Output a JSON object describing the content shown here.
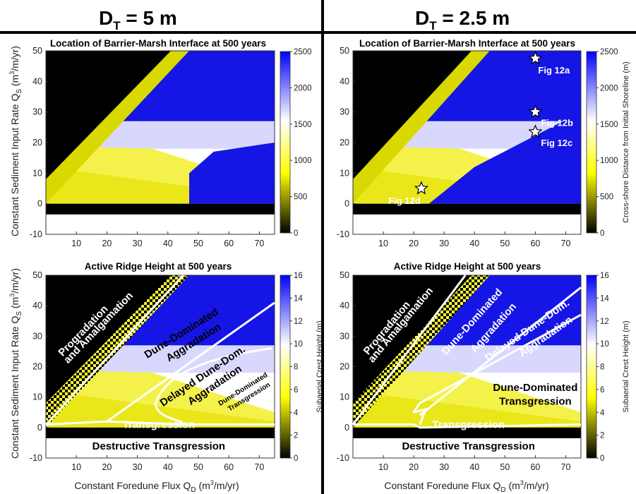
{
  "column_titles": [
    {
      "main": "D",
      "sub": "T",
      "rest": " = 5 m"
    },
    {
      "main": "D",
      "sub": "T",
      "rest": " = 2.5 m"
    }
  ],
  "chart_data": [
    {
      "type": "heatmap",
      "title": "Location of Barrier-Marsh Interface at 500 years",
      "column": "D_T = 5 m",
      "xlabel": "",
      "ylabel": "Constant Sediment Input Rate Q_S (m^3/m/yr)",
      "xlim": [
        0,
        75
      ],
      "ylim": [
        -10,
        50
      ],
      "xticks": [
        10,
        20,
        30,
        40,
        50,
        60,
        70
      ],
      "yticks": [
        -10,
        0,
        10,
        20,
        30,
        40,
        50
      ],
      "colorbar": {
        "label": "",
        "range": [
          0,
          2500
        ],
        "ticks": [
          0,
          500,
          1000,
          1500,
          2000,
          2500
        ],
        "colors": [
          "#000000",
          "#ffff00",
          "#ffffff",
          "#0000ff"
        ]
      },
      "annotations": []
    },
    {
      "type": "heatmap",
      "title": "Location of Barrier-Marsh Interface at 500 years",
      "column": "D_T = 2.5 m",
      "xlabel": "",
      "ylabel": "",
      "xlim": [
        0,
        75
      ],
      "ylim": [
        -10,
        50
      ],
      "xticks": [
        10,
        20,
        30,
        40,
        50,
        60,
        70
      ],
      "yticks": [
        -10,
        0,
        10,
        20,
        30,
        40,
        50
      ],
      "colorbar": {
        "label": "Cross-shore Distance from Initial Shoreline (m)",
        "range": [
          0,
          2500
        ],
        "ticks": [
          0,
          500,
          1000,
          1500,
          2000,
          2500
        ],
        "colors": [
          "#000000",
          "#ffff00",
          "#ffffff",
          "#0000ff"
        ]
      },
      "annotations": [
        {
          "label": "Fig 12a",
          "x": 60,
          "y": 47.5
        },
        {
          "label": "Fig 12b",
          "x": 60,
          "y": 30
        },
        {
          "label": "Fig 12c",
          "x": 60,
          "y": 23.5
        },
        {
          "label": "Fig 12d",
          "x": 22.5,
          "y": 5
        }
      ]
    },
    {
      "type": "heatmap",
      "title": "Active Ridge Height at 500 years",
      "column": "D_T = 5 m",
      "xlabel": "Constant Foredune Flux Q_D (m^3/m/yr)",
      "ylabel": "Constant Sediment Input Rate Q_S (m^3/m/yr)",
      "xlim": [
        0,
        75
      ],
      "ylim": [
        -10,
        50
      ],
      "xticks": [
        10,
        20,
        30,
        40,
        50,
        60,
        70
      ],
      "yticks": [
        -10,
        0,
        10,
        20,
        30,
        40,
        50
      ],
      "colorbar": {
        "label": "Subaerial Crest Height (m)",
        "range": [
          0,
          16
        ],
        "ticks": [
          0,
          2,
          4,
          6,
          8,
          10,
          12,
          14,
          16
        ],
        "colors": [
          "#000000",
          "#ffff00",
          "#ffffff",
          "#0000ff"
        ]
      },
      "regions": [
        "Progradation and Amalgamation",
        "Dune-Dominated Aggradation",
        "Delayed Dune-Dom. Aggradation",
        "Dune-Dominated Transgression",
        "Transgression",
        "Destructive Transgression"
      ]
    },
    {
      "type": "heatmap",
      "title": "Active Ridge Height at 500 years",
      "column": "D_T = 2.5 m",
      "xlabel": "Constant Foredune Flux Q_D (m^3/m/yr)",
      "ylabel": "",
      "xlim": [
        0,
        75
      ],
      "ylim": [
        -10,
        50
      ],
      "xticks": [
        10,
        20,
        30,
        40,
        50,
        60,
        70
      ],
      "yticks": [
        -10,
        0,
        10,
        20,
        30,
        40,
        50
      ],
      "colorbar": {
        "label": "Subaerial Crest Height (m)",
        "range": [
          0,
          16
        ],
        "ticks": [
          0,
          2,
          4,
          6,
          8,
          10,
          12,
          14,
          16
        ],
        "colors": [
          "#000000",
          "#ffff00",
          "#ffffff",
          "#0000ff"
        ]
      },
      "regions": [
        "Progradation and Amalgamation",
        "Dune-Dominated Aggradation",
        "Delayed Dune-Dom. Aggradation",
        "Dune-Dominated Transgression",
        "Transgression",
        "Destructive Transgression"
      ]
    }
  ],
  "labels": {
    "ylabel_main": "Constant Sediment Input Rate Q",
    "ylabel_sub": "S",
    "ylabel_unit_pre": " (m",
    "ylabel_sup": "3",
    "ylabel_unit_post": "/m/yr)",
    "xlabel_main": "Constant Foredune Flux Q",
    "xlabel_sub": "D",
    "xlabel_unit_pre": " (m",
    "xlabel_sup": "3",
    "xlabel_unit_post": "/m/yr)"
  },
  "regions_text": {
    "prog1": "Progradation",
    "prog2": "and Amalgamation",
    "dda1": "Dune-Dominated",
    "dda2": "Aggradation",
    "ddda1": "Delayed Dune-Dom.",
    "ddda2": "Aggradation",
    "ddt1": "Dune-Dominated",
    "ddt2": "Transgression",
    "trans": "Transgression",
    "destr": "Destructive Transgression"
  }
}
